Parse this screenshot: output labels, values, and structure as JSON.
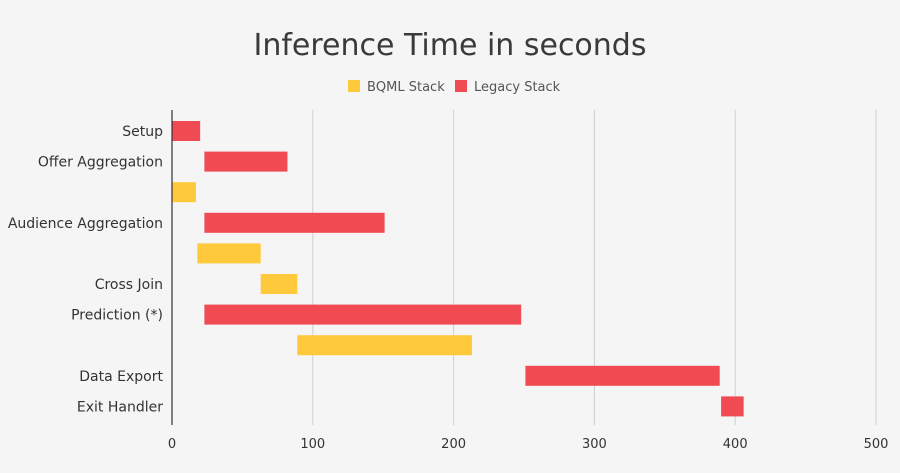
{
  "chart_data": {
    "type": "bar",
    "title": "Inference Time in seconds",
    "xlim": [
      0,
      500
    ],
    "xticks": [
      0,
      100,
      200,
      300,
      400,
      500
    ],
    "grid": true,
    "legend_position": "top-center",
    "colors": {
      "BQML Stack": "#ffc93c",
      "Legacy Stack": "#f04a53"
    },
    "series": [
      {
        "name": "BQML Stack"
      },
      {
        "name": "Legacy Stack"
      }
    ],
    "rows": [
      {
        "label": "Setup",
        "series": "Legacy Stack",
        "start": 0,
        "end": 20
      },
      {
        "label": "Offer Aggregation",
        "series": "Legacy Stack",
        "start": 23,
        "end": 82
      },
      {
        "label": "",
        "series": "BQML Stack",
        "start": 0,
        "end": 17
      },
      {
        "label": "Audience Aggregation",
        "series": "Legacy Stack",
        "start": 23,
        "end": 151
      },
      {
        "label": "",
        "series": "BQML Stack",
        "start": 18,
        "end": 63
      },
      {
        "label": "Cross Join",
        "series": "BQML Stack",
        "start": 63,
        "end": 89
      },
      {
        "label": "Prediction (*)",
        "series": "Legacy Stack",
        "start": 23,
        "end": 248
      },
      {
        "label": "",
        "series": "BQML Stack",
        "start": 89,
        "end": 213
      },
      {
        "label": "Data Export",
        "series": "Legacy Stack",
        "start": 251,
        "end": 389
      },
      {
        "label": "Exit Handler",
        "series": "Legacy Stack",
        "start": 390,
        "end": 406
      }
    ]
  }
}
